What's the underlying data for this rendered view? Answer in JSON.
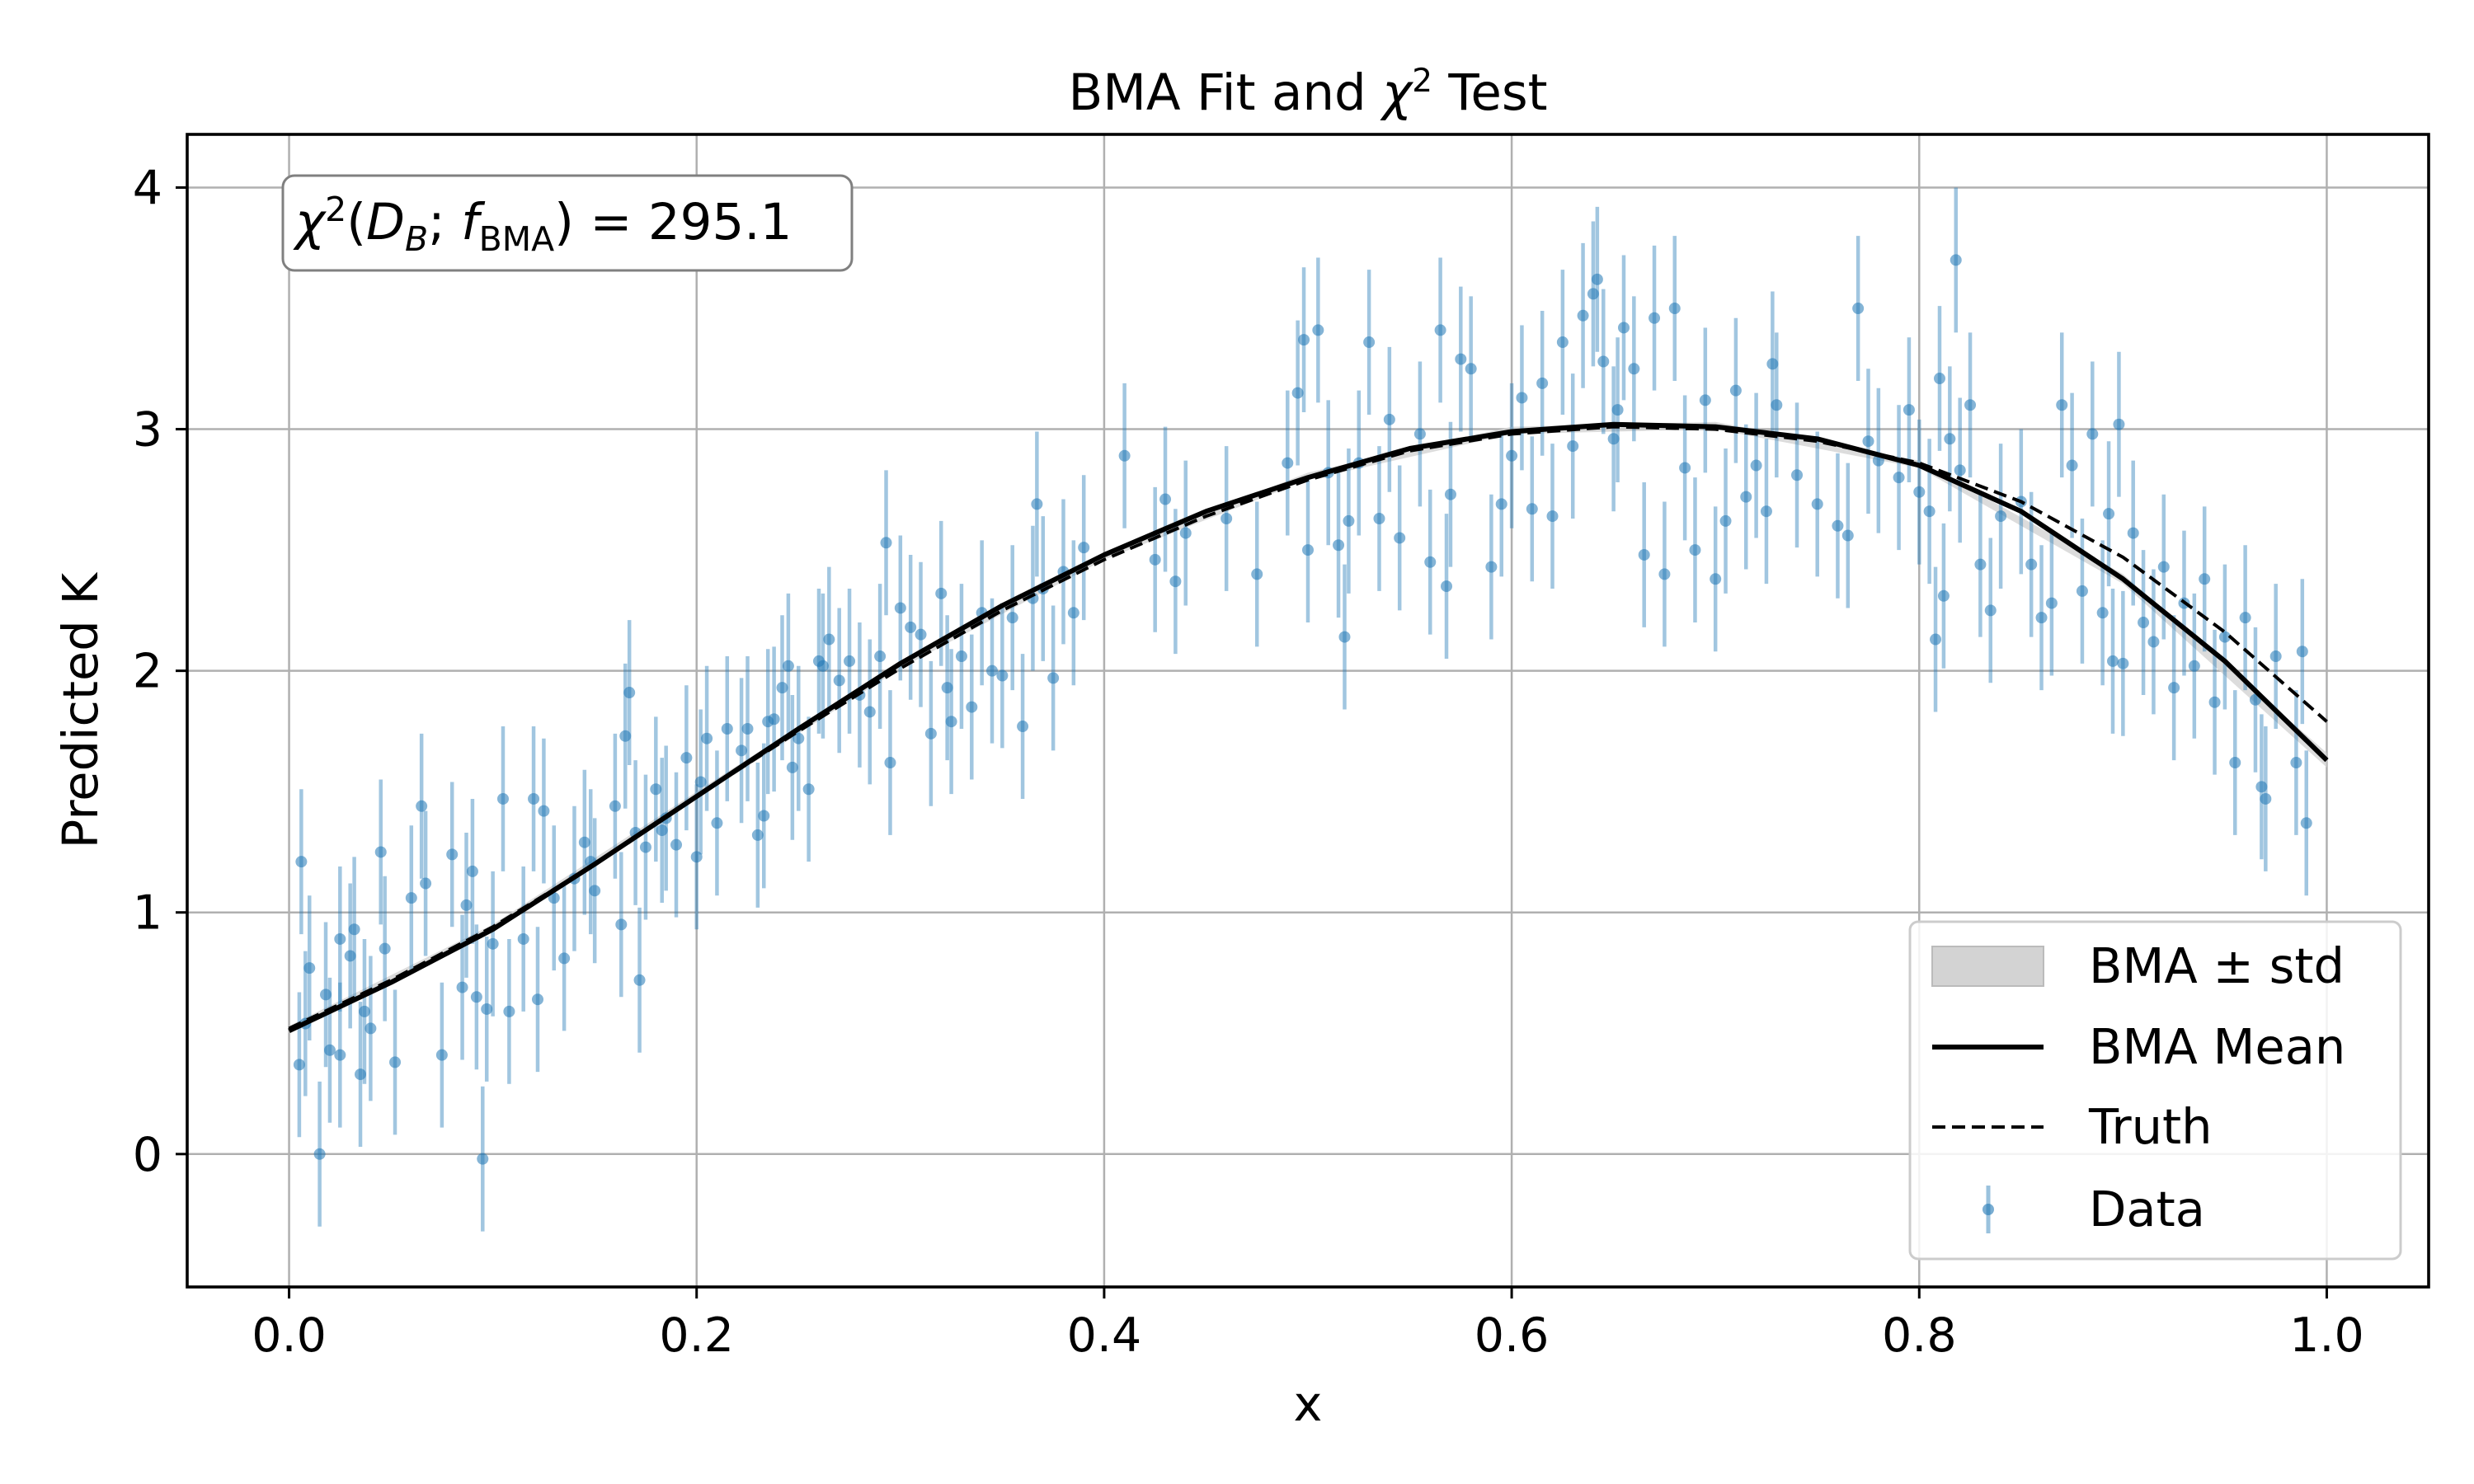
{
  "chart_data": {
    "type": "scatter",
    "title_prefix": "BMA Fit and ",
    "title_symbol": "χ",
    "title_sup": "2",
    "title_suffix": " Test",
    "xlabel": "x",
    "ylabel": "Predicted K",
    "xlim": [
      -0.05,
      1.05
    ],
    "ylim": [
      -0.55,
      4.22
    ],
    "x_ticks": [
      0.0,
      0.2,
      0.4,
      0.6,
      0.8,
      1.0
    ],
    "x_tick_labels": [
      "0.0",
      "0.2",
      "0.4",
      "0.6",
      "0.8",
      "1.0"
    ],
    "y_ticks": [
      0,
      1,
      2,
      3,
      4
    ],
    "y_tick_labels": [
      "0",
      "1",
      "2",
      "3",
      "4"
    ],
    "grid": true,
    "legend_position": "lower-right",
    "annotation": {
      "chi": "χ",
      "sup": "2",
      "open": "(",
      "d": "D",
      "d_sub": "B",
      "sep": "; ",
      "f": "f",
      "f_sub": "BMA",
      "close": ") = 295.1"
    },
    "colors": {
      "data": "#1f77b4",
      "mean": "#000000",
      "truth": "#000000",
      "band": "#d3d3d3",
      "grid": "#b0b0b0"
    },
    "series": [
      {
        "name": "BMA ± std",
        "kind": "band",
        "x": [
          0,
          0.1,
          0.2,
          0.3,
          0.4,
          0.5,
          0.6,
          0.7,
          0.8,
          0.9,
          1.0
        ],
        "lower": [
          0.5,
          0.92,
          1.47,
          2.01,
          2.46,
          2.79,
          2.98,
          3.0,
          2.84,
          2.36,
          1.6
        ],
        "upper": [
          0.53,
          0.95,
          1.5,
          2.04,
          2.49,
          2.82,
          3.01,
          3.03,
          2.87,
          2.4,
          1.66
        ]
      },
      {
        "name": "BMA Mean",
        "kind": "line",
        "x": [
          0,
          0.05,
          0.1,
          0.15,
          0.2,
          0.25,
          0.3,
          0.35,
          0.4,
          0.45,
          0.5,
          0.55,
          0.6,
          0.65,
          0.7,
          0.75,
          0.8,
          0.85,
          0.9,
          0.95,
          1.0
        ],
        "y": [
          0.51,
          0.71,
          0.93,
          1.2,
          1.48,
          1.76,
          2.03,
          2.27,
          2.48,
          2.66,
          2.8,
          2.92,
          2.99,
          3.02,
          3.01,
          2.96,
          2.85,
          2.66,
          2.38,
          2.04,
          1.63
        ]
      },
      {
        "name": "Truth",
        "kind": "dashed",
        "x": [
          0,
          0.05,
          0.1,
          0.15,
          0.2,
          0.25,
          0.3,
          0.35,
          0.4,
          0.45,
          0.5,
          0.55,
          0.6,
          0.65,
          0.7,
          0.75,
          0.8,
          0.85,
          0.9,
          0.95,
          1.0
        ],
        "y": [
          0.52,
          0.72,
          0.94,
          1.2,
          1.48,
          1.75,
          2.01,
          2.25,
          2.46,
          2.64,
          2.79,
          2.91,
          2.98,
          3.01,
          3.0,
          2.95,
          2.86,
          2.7,
          2.47,
          2.16,
          1.79
        ]
      },
      {
        "name": "Data",
        "kind": "errorbar",
        "yerr": 0.3,
        "points": [
          [
            0.005,
            0.37
          ],
          [
            0.006,
            1.21
          ],
          [
            0.008,
            0.54
          ],
          [
            0.01,
            0.77
          ],
          [
            0.015,
            0.0
          ],
          [
            0.018,
            0.66
          ],
          [
            0.02,
            0.43
          ],
          [
            0.025,
            0.89
          ],
          [
            0.025,
            0.41
          ],
          [
            0.03,
            0.82
          ],
          [
            0.032,
            0.93
          ],
          [
            0.035,
            0.33
          ],
          [
            0.037,
            0.59
          ],
          [
            0.04,
            0.52
          ],
          [
            0.045,
            1.25
          ],
          [
            0.047,
            0.85
          ],
          [
            0.052,
            0.38
          ],
          [
            0.06,
            1.06
          ],
          [
            0.065,
            1.44
          ],
          [
            0.067,
            1.12
          ],
          [
            0.075,
            0.41
          ],
          [
            0.08,
            1.24
          ],
          [
            0.085,
            0.69
          ],
          [
            0.087,
            1.03
          ],
          [
            0.09,
            1.17
          ],
          [
            0.092,
            0.65
          ],
          [
            0.095,
            -0.02
          ],
          [
            0.097,
            0.6
          ],
          [
            0.1,
            0.87
          ],
          [
            0.105,
            1.47
          ],
          [
            0.108,
            0.59
          ],
          [
            0.115,
            0.89
          ],
          [
            0.12,
            1.47
          ],
          [
            0.122,
            0.64
          ],
          [
            0.125,
            1.42
          ],
          [
            0.13,
            1.06
          ],
          [
            0.135,
            0.81
          ],
          [
            0.14,
            1.14
          ],
          [
            0.145,
            1.29
          ],
          [
            0.148,
            1.21
          ],
          [
            0.15,
            1.09
          ],
          [
            0.16,
            1.44
          ],
          [
            0.163,
            0.95
          ],
          [
            0.165,
            1.73
          ],
          [
            0.167,
            1.91
          ],
          [
            0.17,
            1.33
          ],
          [
            0.172,
            0.72
          ],
          [
            0.175,
            1.27
          ],
          [
            0.18,
            1.51
          ],
          [
            0.183,
            1.34
          ],
          [
            0.185,
            1.39
          ],
          [
            0.19,
            1.28
          ],
          [
            0.195,
            1.64
          ],
          [
            0.2,
            1.23
          ],
          [
            0.202,
            1.54
          ],
          [
            0.205,
            1.72
          ],
          [
            0.21,
            1.37
          ],
          [
            0.215,
            1.76
          ],
          [
            0.222,
            1.67
          ],
          [
            0.225,
            1.76
          ],
          [
            0.23,
            1.32
          ],
          [
            0.233,
            1.4
          ],
          [
            0.235,
            1.79
          ],
          [
            0.238,
            1.8
          ],
          [
            0.242,
            1.93
          ],
          [
            0.245,
            2.02
          ],
          [
            0.247,
            1.6
          ],
          [
            0.25,
            1.72
          ],
          [
            0.255,
            1.51
          ],
          [
            0.26,
            2.04
          ],
          [
            0.262,
            2.02
          ],
          [
            0.265,
            2.13
          ],
          [
            0.27,
            1.96
          ],
          [
            0.275,
            2.04
          ],
          [
            0.28,
            1.9
          ],
          [
            0.285,
            1.83
          ],
          [
            0.29,
            2.06
          ],
          [
            0.293,
            2.53
          ],
          [
            0.295,
            1.62
          ],
          [
            0.3,
            2.26
          ],
          [
            0.305,
            2.18
          ],
          [
            0.31,
            2.15
          ],
          [
            0.315,
            1.74
          ],
          [
            0.32,
            2.32
          ],
          [
            0.323,
            1.93
          ],
          [
            0.325,
            1.79
          ],
          [
            0.33,
            2.06
          ],
          [
            0.335,
            1.85
          ],
          [
            0.34,
            2.24
          ],
          [
            0.345,
            2.0
          ],
          [
            0.35,
            1.98
          ],
          [
            0.355,
            2.22
          ],
          [
            0.36,
            1.77
          ],
          [
            0.365,
            2.3
          ],
          [
            0.367,
            2.69
          ],
          [
            0.37,
            2.34
          ],
          [
            0.375,
            1.97
          ],
          [
            0.38,
            2.41
          ],
          [
            0.385,
            2.24
          ],
          [
            0.39,
            2.51
          ],
          [
            0.41,
            2.89
          ],
          [
            0.425,
            2.46
          ],
          [
            0.43,
            2.71
          ],
          [
            0.435,
            2.37
          ],
          [
            0.44,
            2.57
          ],
          [
            0.46,
            2.63
          ],
          [
            0.475,
            2.4
          ],
          [
            0.49,
            2.86
          ],
          [
            0.495,
            3.15
          ],
          [
            0.498,
            3.37
          ],
          [
            0.5,
            2.5
          ],
          [
            0.505,
            3.41
          ],
          [
            0.51,
            2.82
          ],
          [
            0.515,
            2.52
          ],
          [
            0.518,
            2.14
          ],
          [
            0.52,
            2.62
          ],
          [
            0.525,
            2.86
          ],
          [
            0.53,
            3.36
          ],
          [
            0.535,
            2.63
          ],
          [
            0.54,
            3.04
          ],
          [
            0.545,
            2.55
          ],
          [
            0.555,
            2.98
          ],
          [
            0.56,
            2.45
          ],
          [
            0.565,
            3.41
          ],
          [
            0.568,
            2.35
          ],
          [
            0.57,
            2.73
          ],
          [
            0.575,
            3.29
          ],
          [
            0.58,
            3.25
          ],
          [
            0.59,
            2.43
          ],
          [
            0.595,
            2.69
          ],
          [
            0.6,
            2.89
          ],
          [
            0.605,
            3.13
          ],
          [
            0.61,
            2.67
          ],
          [
            0.615,
            3.19
          ],
          [
            0.62,
            2.64
          ],
          [
            0.625,
            3.36
          ],
          [
            0.63,
            2.93
          ],
          [
            0.635,
            3.47
          ],
          [
            0.64,
            3.56
          ],
          [
            0.642,
            3.62
          ],
          [
            0.645,
            3.28
          ],
          [
            0.65,
            2.96
          ],
          [
            0.652,
            3.08
          ],
          [
            0.655,
            3.42
          ],
          [
            0.66,
            3.25
          ],
          [
            0.665,
            2.48
          ],
          [
            0.67,
            3.46
          ],
          [
            0.675,
            2.4
          ],
          [
            0.68,
            3.5
          ],
          [
            0.685,
            2.84
          ],
          [
            0.69,
            2.5
          ],
          [
            0.695,
            3.12
          ],
          [
            0.7,
            2.38
          ],
          [
            0.705,
            2.62
          ],
          [
            0.71,
            3.16
          ],
          [
            0.715,
            2.72
          ],
          [
            0.72,
            2.85
          ],
          [
            0.725,
            2.66
          ],
          [
            0.728,
            3.27
          ],
          [
            0.73,
            3.1
          ],
          [
            0.74,
            2.81
          ],
          [
            0.75,
            2.69
          ],
          [
            0.76,
            2.6
          ],
          [
            0.765,
            2.56
          ],
          [
            0.77,
            3.5
          ],
          [
            0.775,
            2.95
          ],
          [
            0.78,
            2.87
          ],
          [
            0.79,
            2.8
          ],
          [
            0.795,
            3.08
          ],
          [
            0.8,
            2.74
          ],
          [
            0.805,
            2.66
          ],
          [
            0.808,
            2.13
          ],
          [
            0.81,
            3.21
          ],
          [
            0.812,
            2.31
          ],
          [
            0.815,
            2.96
          ],
          [
            0.818,
            3.7
          ],
          [
            0.82,
            2.83
          ],
          [
            0.825,
            3.1
          ],
          [
            0.83,
            2.44
          ],
          [
            0.835,
            2.25
          ],
          [
            0.84,
            2.64
          ],
          [
            0.85,
            2.7
          ],
          [
            0.855,
            2.44
          ],
          [
            0.86,
            2.22
          ],
          [
            0.865,
            2.28
          ],
          [
            0.87,
            3.1
          ],
          [
            0.875,
            2.85
          ],
          [
            0.88,
            2.33
          ],
          [
            0.885,
            2.98
          ],
          [
            0.89,
            2.24
          ],
          [
            0.893,
            2.65
          ],
          [
            0.895,
            2.04
          ],
          [
            0.898,
            3.02
          ],
          [
            0.9,
            2.03
          ],
          [
            0.905,
            2.57
          ],
          [
            0.91,
            2.2
          ],
          [
            0.915,
            2.12
          ],
          [
            0.92,
            2.43
          ],
          [
            0.925,
            1.93
          ],
          [
            0.93,
            2.28
          ],
          [
            0.935,
            2.02
          ],
          [
            0.94,
            2.38
          ],
          [
            0.945,
            1.87
          ],
          [
            0.95,
            2.14
          ],
          [
            0.955,
            1.62
          ],
          [
            0.96,
            2.22
          ],
          [
            0.965,
            1.88
          ],
          [
            0.968,
            1.52
          ],
          [
            0.97,
            1.47
          ],
          [
            0.975,
            2.06
          ],
          [
            0.985,
            1.62
          ],
          [
            0.988,
            2.08
          ],
          [
            0.99,
            1.37
          ]
        ]
      }
    ]
  }
}
